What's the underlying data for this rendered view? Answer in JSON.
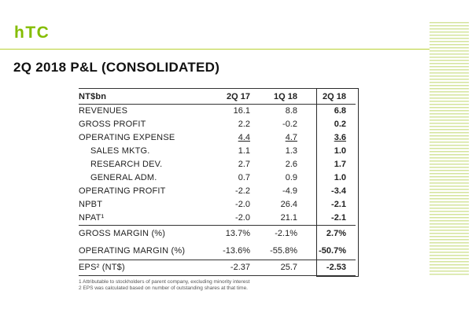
{
  "logo": {
    "text": "hTC"
  },
  "title": "2Q 2018 P&L (CONSOLIDATED)",
  "table": {
    "header": [
      "NT$bn",
      "2Q 17",
      "1Q 18",
      "2Q 18"
    ],
    "rows": [
      {
        "label": "REVENUES",
        "values": [
          "16.1",
          "8.8",
          "6.8"
        ]
      },
      {
        "label": "GROSS PROFIT",
        "values": [
          "2.2",
          "-0.2",
          "0.2"
        ]
      },
      {
        "label": "OPERATING EXPENSE",
        "values": [
          "4.4",
          "4.7",
          "3.6"
        ]
      },
      {
        "label": "SALES MKTG.",
        "indent": true,
        "values": [
          "1.1",
          "1.3",
          "1.0"
        ]
      },
      {
        "label": "RESEARCH DEV.",
        "indent": true,
        "values": [
          "2.7",
          "2.6",
          "1.7"
        ]
      },
      {
        "label": "GENERAL ADM.",
        "indent": true,
        "values": [
          "0.7",
          "0.9",
          "1.0"
        ]
      },
      {
        "label": "OPERATING PROFIT",
        "values": [
          "-2.2",
          "-4.9",
          "-3.4"
        ]
      },
      {
        "label": "NPBT",
        "values": [
          "-2.0",
          "26.4",
          "-2.1"
        ]
      },
      {
        "label": "NPAT¹",
        "values": [
          "-2.0",
          "21.1",
          "-2.1"
        ]
      },
      {
        "label": "GROSS MARGIN (%)",
        "values": [
          "13.7%",
          "-2.1%",
          "2.7%"
        ]
      },
      {
        "label": "OPERATING MARGIN (%)",
        "values": [
          "-13.6%",
          "-55.8%",
          "-50.7%"
        ]
      },
      {
        "label": "EPS² (NT$)",
        "values": [
          "-2.37",
          "25.7",
          "-2.53"
        ]
      }
    ]
  },
  "footnotes": [
    "1 Attributable to stockholders of parent company, excluding minority interest",
    "2 EPS was calculated based on number of outstanding shares at that time."
  ],
  "colors": {
    "brand_green": "#84bd00",
    "rule_green": "#b9d233",
    "stripe_green": "#d4e49c"
  }
}
